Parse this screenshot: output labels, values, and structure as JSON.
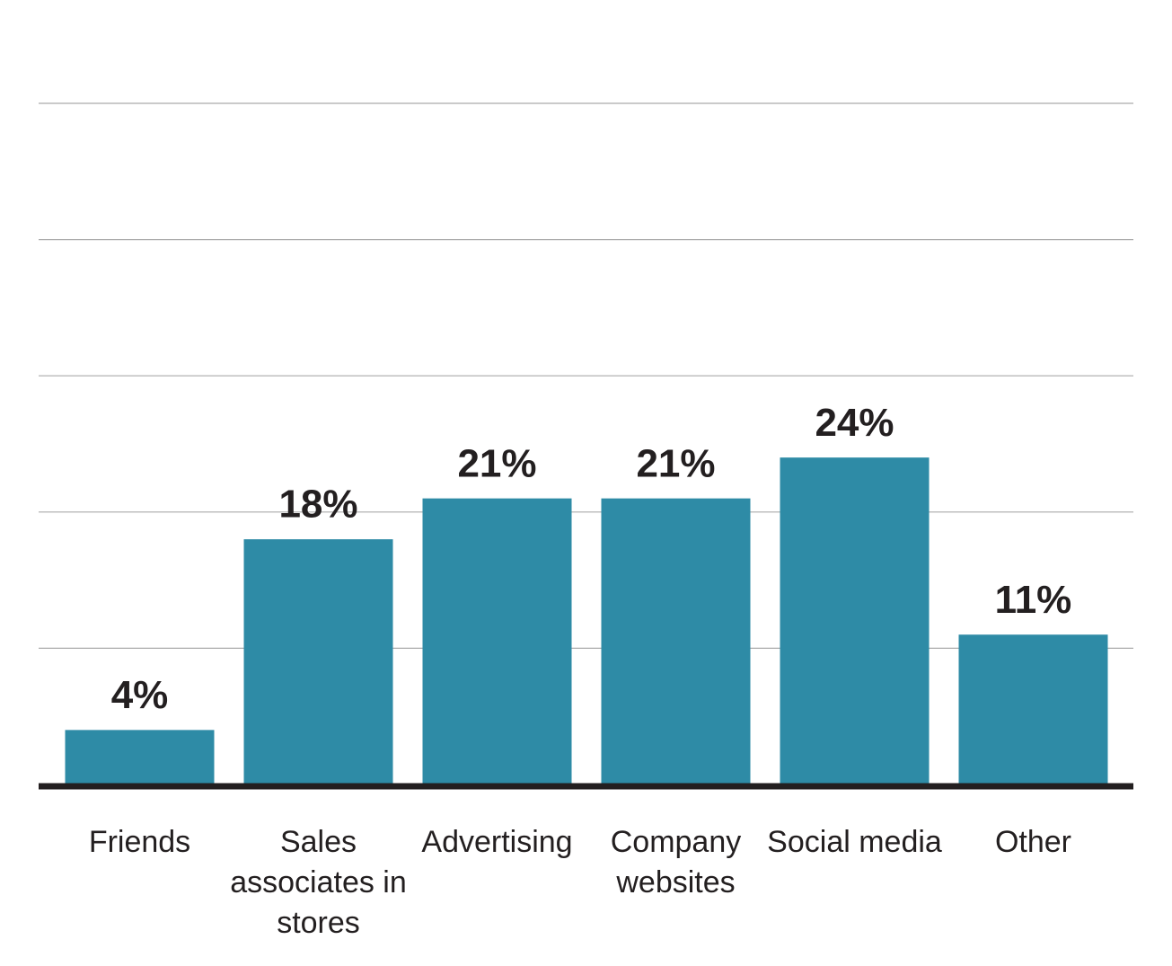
{
  "chart_data": {
    "type": "bar",
    "categories": [
      "Friends",
      "Sales associates in stores",
      "Advertising",
      "Company websites",
      "Social media",
      "Other"
    ],
    "values": [
      4,
      18,
      21,
      21,
      24,
      11
    ],
    "value_labels": [
      "4%",
      "18%",
      "21%",
      "21%",
      "24%",
      "11%"
    ],
    "color": "#2e8ba6",
    "ylim": [
      0,
      50
    ],
    "yticks": [
      10,
      20,
      30,
      40,
      50
    ],
    "grid": true
  }
}
